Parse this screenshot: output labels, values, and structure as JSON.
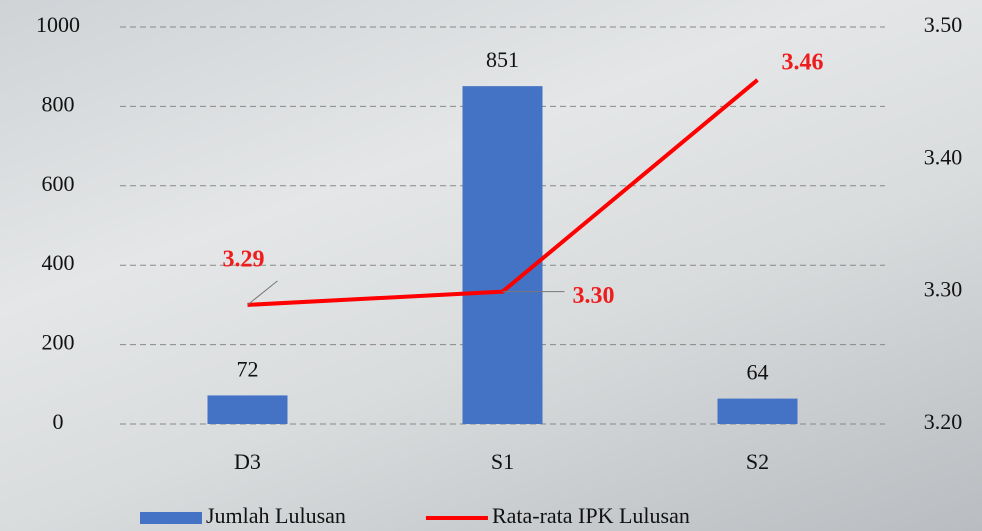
{
  "chart_data": {
    "type": "bar",
    "categories": [
      "D3",
      "S1",
      "S2"
    ],
    "series": [
      {
        "name": "Jumlah Lulusan",
        "type": "bar",
        "color": "#4472c4",
        "values": [
          72,
          851,
          64
        ]
      },
      {
        "name": "Rata-rata IPK Lulusan",
        "type": "line",
        "axis": "y2",
        "color": "#ff0000",
        "values": [
          3.29,
          3.3,
          3.46
        ],
        "value_labels": [
          "3.29",
          "3.30",
          "3.46"
        ]
      }
    ],
    "ylim": [
      0,
      1000
    ],
    "yticks": [
      0,
      200,
      400,
      600,
      800,
      1000
    ],
    "y2lim": [
      3.2,
      3.5
    ],
    "y2ticks": [
      {
        "value": 3.2,
        "label": "3.20"
      },
      {
        "value": 3.3,
        "label": "3.30"
      },
      {
        "value": 3.4,
        "label": "3.40"
      },
      {
        "value": 3.5,
        "label": "3.50"
      }
    ],
    "grid": true,
    "legend": "bottom"
  }
}
